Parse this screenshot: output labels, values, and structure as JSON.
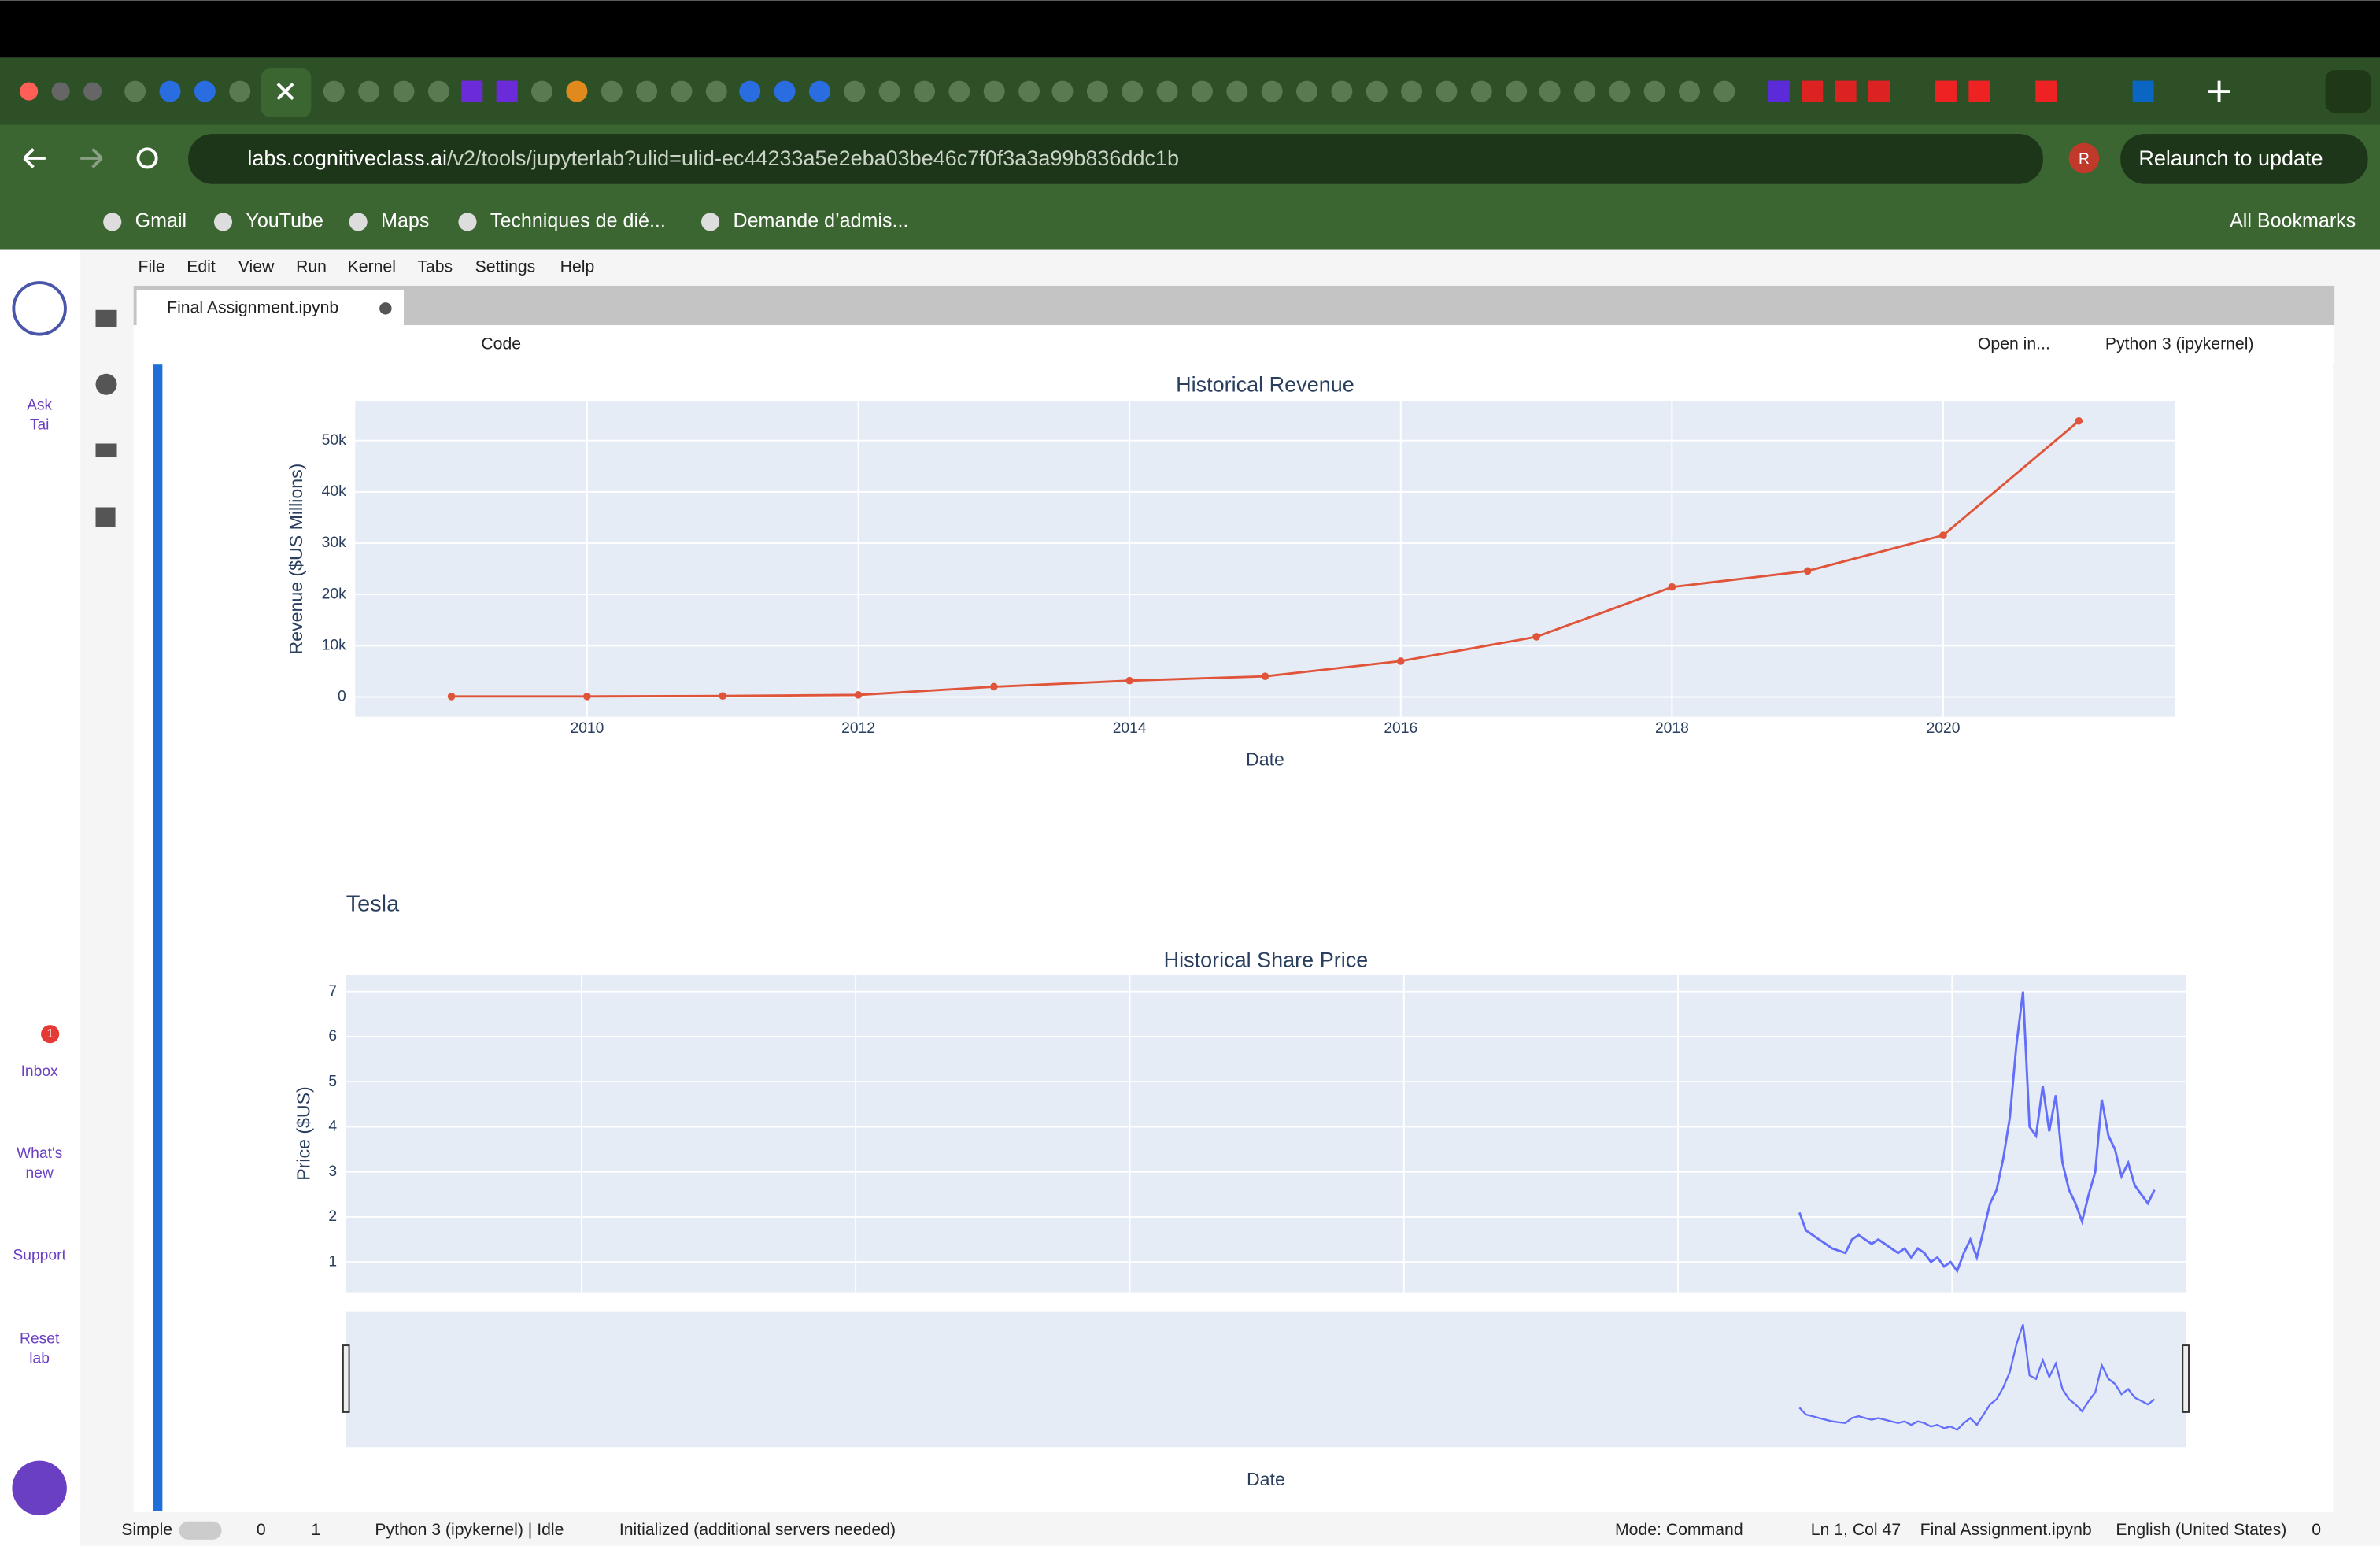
{
  "browser": {
    "url_host": "labs.cognitiveclass.ai",
    "url_path": "/v2/tools/jupyterlab?ulid=ulid-ec44233a5e2eba03be46c7f0f3a3a99b836ddc1b",
    "profile": "R",
    "relaunch": "Relaunch to update",
    "bookmarks": [
      "Gmail",
      "YouTube",
      "Maps",
      "Techniques de dié...",
      "Demande d’admis..."
    ],
    "all_bookmarks": "All Bookmarks"
  },
  "menu": [
    "File",
    "Edit",
    "View",
    "Run",
    "Kernel",
    "Tabs",
    "Settings",
    "Help"
  ],
  "notebook_tab": "Final Assignment.ipynb",
  "cell_type": "Code",
  "open_in": "Open in...",
  "kernel": "Python 3 (ipykernel)",
  "sidebar": {
    "ask": [
      "Ask",
      "Tai"
    ],
    "inbox": "Inbox",
    "inbox_badge": "1",
    "whats_new": [
      "What's",
      "new"
    ],
    "support": "Support",
    "reset": [
      "Reset",
      "lab"
    ]
  },
  "status": {
    "mode_toggle": "Simple",
    "terminals": "0",
    "kernels": "1",
    "kernel_state": "Python 3 (ipykernel) | Idle",
    "init": "Initialized (additional servers needed)",
    "mode": "Mode: Command",
    "position": "Ln 1, Col 47",
    "file": "Final Assignment.ipynb",
    "language": "English (United States)",
    "notifications": "0"
  },
  "chart_heading": "Tesla",
  "chart_data": [
    {
      "type": "line",
      "title": "Historical Revenue",
      "x_label": "Date",
      "y_label": "Revenue ($US Millions)",
      "color": "#e0553a",
      "x": [
        2009,
        2010,
        2011,
        2012,
        2013,
        2014,
        2015,
        2016,
        2017,
        2018,
        2019,
        2020,
        2021
      ],
      "values": [
        112,
        117,
        204,
        413,
        2013,
        3198,
        4046,
        7000,
        11759,
        21461,
        24578,
        31536,
        53823
      ],
      "xlim": [
        2008.29,
        2021.71
      ],
      "xticks": [
        2010,
        2012,
        2014,
        2016,
        2018,
        2020
      ],
      "ylim": [
        -3850,
        57700
      ],
      "yticks": [
        0,
        {
          "value": 10000,
          "label": "10k"
        },
        {
          "value": 20000,
          "label": "20k"
        },
        {
          "value": 30000,
          "label": "30k"
        },
        {
          "value": 40000,
          "label": "40k"
        },
        {
          "value": 50000,
          "label": "50k"
        }
      ],
      "grid": true
    },
    {
      "type": "line",
      "title": "Historical Share Price",
      "x_label": "Date",
      "y_label": "Price ($US)",
      "color": "#636efa",
      "values": [
        2.1,
        1.7,
        1.6,
        1.5,
        1.4,
        1.3,
        1.25,
        1.2,
        1.5,
        1.6,
        1.5,
        1.4,
        1.5,
        1.4,
        1.3,
        1.2,
        1.3,
        1.1,
        1.3,
        1.2,
        1.0,
        1.1,
        0.9,
        1.0,
        0.8,
        1.2,
        1.5,
        1.1,
        1.7,
        2.3,
        2.6,
        3.3,
        4.2,
        5.8,
        7.0,
        4.0,
        3.8,
        4.9,
        3.9,
        4.7,
        3.2,
        2.6,
        2.3,
        1.9,
        2.5,
        3.0,
        4.6,
        3.8,
        3.5,
        2.9,
        3.2,
        2.7,
        2.5,
        2.3,
        2.6
      ],
      "ylim": [
        0.33,
        7.37
      ],
      "yticks": [
        1,
        2,
        3,
        4,
        5,
        6,
        7
      ],
      "grid": true,
      "range_slider": true
    }
  ]
}
